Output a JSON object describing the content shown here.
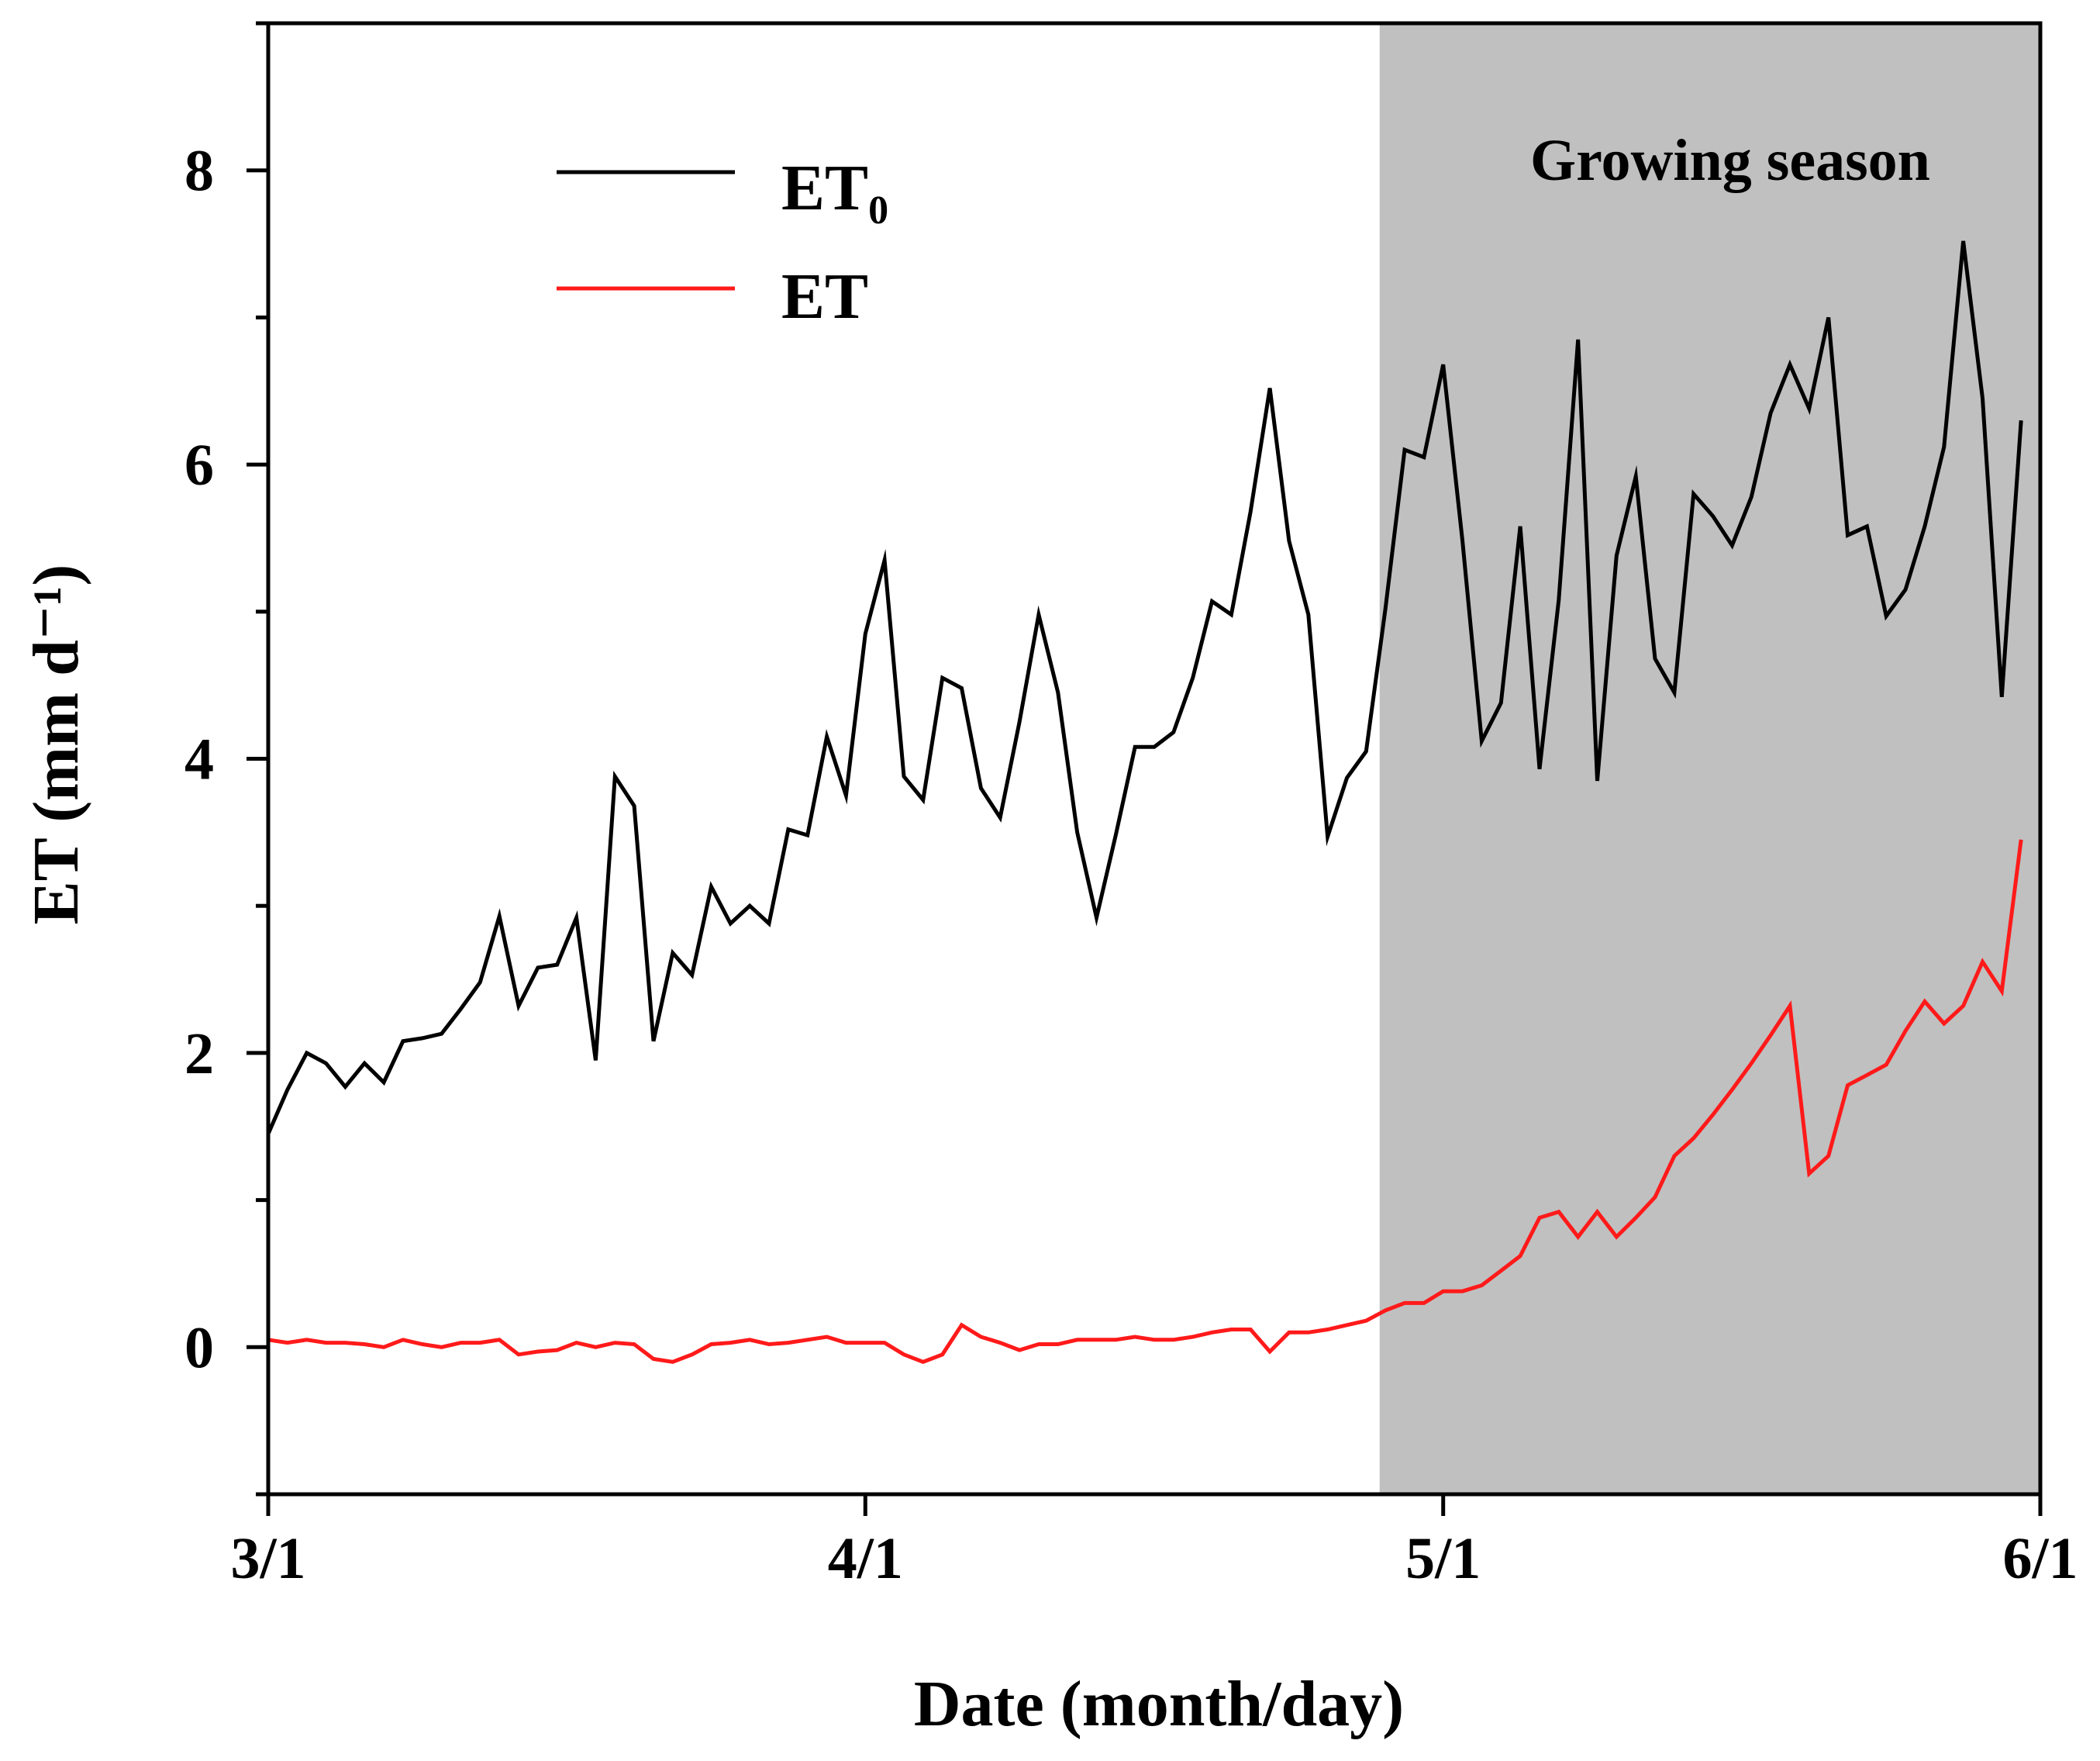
{
  "chart_data": {
    "type": "line",
    "xlabel": "Date (month/day)",
    "ylabel": "ET (mm d⁻¹)",
    "xlim": [
      0,
      92
    ],
    "ylim": [
      -1,
      9
    ],
    "x_ticks": [
      {
        "pos": 0,
        "label": "3/1"
      },
      {
        "pos": 31,
        "label": "4/1"
      },
      {
        "pos": 61,
        "label": "5/1"
      },
      {
        "pos": 92,
        "label": "6/1"
      }
    ],
    "y_ticks": [
      0,
      2,
      4,
      6,
      8
    ],
    "y_minor_ticks": [
      -1,
      1,
      3,
      5,
      7,
      9
    ],
    "shaded_region": {
      "x_start": 57.7,
      "x_end": 92,
      "label": "Growing season",
      "color": "#c0c0c0"
    },
    "legend": {
      "placement": "top-left",
      "entries": [
        {
          "series": "ET0",
          "label": "ET",
          "subscript": "0"
        },
        {
          "series": "ET",
          "label": "ET",
          "subscript": ""
        }
      ]
    },
    "series": [
      {
        "name": "ET0",
        "color": "#000000",
        "x": [
          0,
          1,
          2,
          3,
          4,
          5,
          6,
          7,
          8,
          9,
          10,
          11,
          12,
          13,
          14,
          15,
          16,
          17,
          18,
          19,
          20,
          21,
          22,
          23,
          24,
          25,
          26,
          27,
          28,
          29,
          30,
          31,
          32,
          33,
          34,
          35,
          36,
          37,
          38,
          39,
          40,
          41,
          42,
          43,
          44,
          45,
          46,
          47,
          48,
          49,
          50,
          51,
          52,
          53,
          54,
          55,
          56,
          57,
          58,
          59,
          60,
          61,
          62,
          63,
          64,
          65,
          66,
          67,
          68,
          69,
          70,
          71,
          72,
          73,
          74,
          75,
          76,
          77,
          78,
          79,
          80,
          81,
          82,
          83,
          84,
          85,
          86,
          87,
          88,
          89,
          90,
          91
        ],
        "values": [
          1.45,
          1.75,
          2.0,
          1.93,
          1.77,
          1.93,
          1.8,
          2.08,
          2.1,
          2.13,
          2.3,
          2.48,
          2.93,
          2.32,
          2.58,
          2.6,
          2.92,
          1.95,
          3.88,
          3.68,
          2.08,
          2.68,
          2.53,
          3.13,
          2.88,
          3.0,
          2.88,
          3.52,
          3.48,
          4.15,
          3.75,
          4.85,
          5.35,
          3.88,
          3.72,
          4.55,
          4.48,
          3.8,
          3.6,
          4.25,
          4.98,
          4.45,
          3.5,
          2.92,
          3.48,
          4.08,
          4.08,
          4.18,
          4.55,
          5.07,
          4.98,
          5.68,
          6.52,
          5.48,
          4.98,
          3.47,
          3.87,
          4.05,
          5.02,
          6.1,
          6.05,
          6.68,
          5.48,
          4.12,
          4.38,
          5.58,
          3.93,
          5.08,
          6.85,
          3.85,
          5.38,
          5.92,
          4.68,
          4.45,
          5.8,
          5.65,
          5.45,
          5.78,
          6.35,
          6.68,
          6.38,
          7.0,
          5.52,
          5.58,
          4.97,
          5.15,
          5.58,
          6.12,
          7.52,
          6.45,
          4.42,
          6.3
        ]
      },
      {
        "name": "ET",
        "color": "#ff1a1a",
        "x": [
          0,
          1,
          2,
          3,
          4,
          5,
          6,
          7,
          8,
          9,
          10,
          11,
          12,
          13,
          14,
          15,
          16,
          17,
          18,
          19,
          20,
          21,
          22,
          23,
          24,
          25,
          26,
          27,
          28,
          29,
          30,
          31,
          32,
          33,
          34,
          35,
          36,
          37,
          38,
          39,
          40,
          41,
          42,
          43,
          44,
          45,
          46,
          47,
          48,
          49,
          50,
          51,
          52,
          53,
          54,
          55,
          56,
          57,
          58,
          59,
          60,
          61,
          62,
          63,
          64,
          65,
          66,
          67,
          68,
          69,
          70,
          71,
          72,
          73,
          74,
          75,
          76,
          77,
          78,
          79,
          80,
          81,
          82,
          83,
          84,
          85,
          86,
          87,
          88,
          89,
          90,
          91
        ],
        "values": [
          0.05,
          0.03,
          0.05,
          0.03,
          0.03,
          0.02,
          0.0,
          0.05,
          0.02,
          0.0,
          0.03,
          0.03,
          0.05,
          -0.05,
          -0.03,
          -0.02,
          0.03,
          0.0,
          0.03,
          0.02,
          -0.08,
          -0.1,
          -0.05,
          0.02,
          0.03,
          0.05,
          0.02,
          0.03,
          0.05,
          0.07,
          0.03,
          0.03,
          0.03,
          -0.05,
          -0.1,
          -0.05,
          0.15,
          0.07,
          0.03,
          -0.02,
          0.02,
          0.02,
          0.05,
          0.05,
          0.05,
          0.07,
          0.05,
          0.05,
          0.07,
          0.1,
          0.12,
          0.12,
          -0.03,
          0.1,
          0.1,
          0.12,
          0.15,
          0.18,
          0.25,
          0.3,
          0.3,
          0.38,
          0.38,
          0.42,
          0.52,
          0.62,
          0.88,
          0.92,
          0.75,
          0.92,
          0.75,
          0.88,
          1.02,
          1.3,
          1.42,
          1.58,
          1.75,
          1.93,
          2.12,
          2.32,
          1.18,
          1.3,
          1.78,
          1.85,
          1.92,
          2.15,
          2.35,
          2.2,
          2.32,
          2.62,
          2.42,
          3.45
        ]
      }
    ]
  },
  "legend": {
    "et0_label": "ET",
    "et0_sub": "0",
    "et_label": "ET"
  },
  "labels": {
    "growing_season": "Growing season",
    "xlabel": "Date (month/day)",
    "ylabel": "ET (mm d⁻¹)"
  },
  "colors": {
    "et0": "#000000",
    "et": "#ff1a1a",
    "shade": "#c0c0c0",
    "axis": "#000000"
  }
}
